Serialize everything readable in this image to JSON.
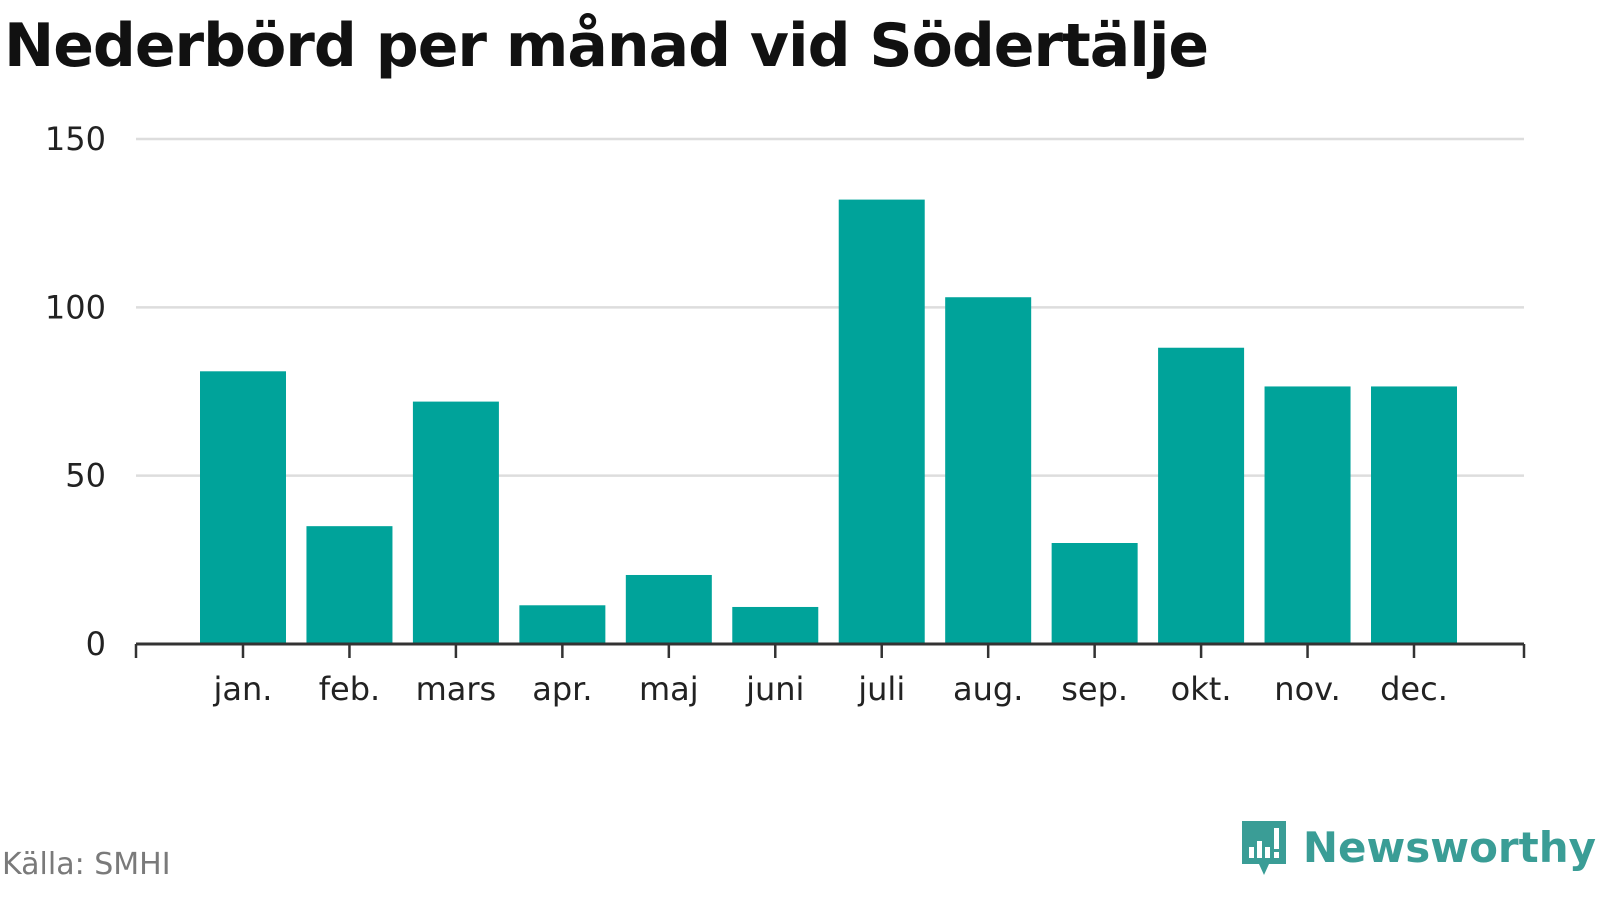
{
  "chart_data": {
    "type": "bar",
    "title": "Nederbörd per månad vid Södertälje",
    "categories": [
      "jan.",
      "feb.",
      "mars",
      "apr.",
      "maj",
      "juni",
      "juli",
      "aug.",
      "sep.",
      "okt.",
      "nov.",
      "dec."
    ],
    "values": [
      81,
      35,
      72,
      11.5,
      20.5,
      11,
      132,
      103,
      30,
      88,
      76.5,
      76.5
    ],
    "yticks": [
      0,
      50,
      100,
      150
    ],
    "ylim": [
      0,
      150
    ],
    "xlabel": "",
    "ylabel": "",
    "grid": true,
    "legend": "none",
    "bar_color": "#00a39a"
  },
  "footer": {
    "source": "Källa: SMHI",
    "brand": "Newsworthy",
    "brand_color": "#3a9d96",
    "brand_icon": "newsworthy-logo-icon"
  }
}
